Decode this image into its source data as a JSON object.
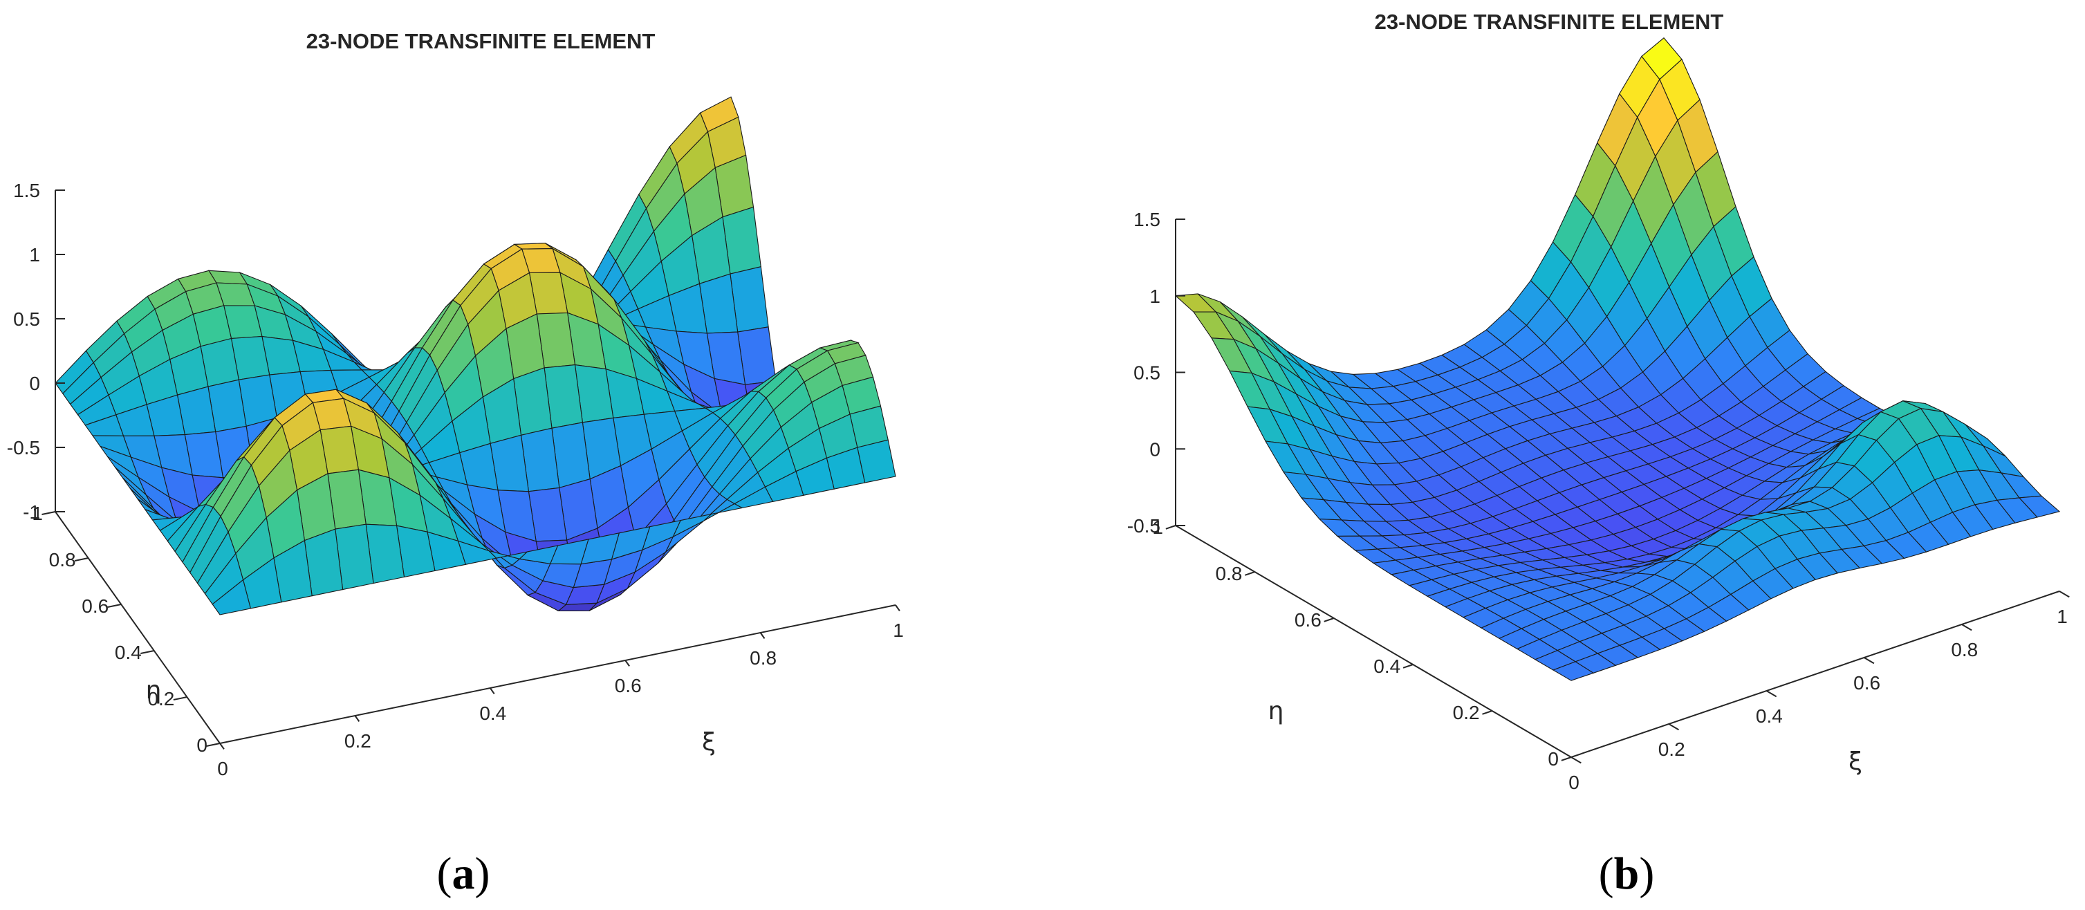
{
  "chart_data": [
    {
      "type": "surface",
      "id": "a",
      "title": "23-NODE TRANSFINITE ELEMENT",
      "xlabel": "ξ",
      "ylabel": "η",
      "zlabel": "",
      "xlim": [
        0,
        1
      ],
      "ylim": [
        0,
        1
      ],
      "zlim": [
        -1,
        1.5
      ],
      "xticks": [
        "0",
        "0.2",
        "0.4",
        "0.6",
        "0.8",
        "1"
      ],
      "yticks": [
        "0",
        "0.2",
        "0.4",
        "0.6",
        "0.8",
        "1"
      ],
      "zticks": [
        "-1",
        "-0.5",
        "0",
        "0.5",
        "1",
        "1.5"
      ],
      "grid_n": 22,
      "surface": "z = cos(2.5π(x+y))·sin(2πx)·sin(2πy)-type oscillating mode shape with 3×3 peaks, amplitude ≈ 1.2, corner value ≈ 1",
      "colormap": "parula",
      "caption": "(a)"
    },
    {
      "type": "surface",
      "id": "b",
      "title": "23-NODE TRANSFINITE ELEMENT",
      "xlabel": "ξ",
      "ylabel": "η",
      "zlabel": "",
      "xlim": [
        0,
        1
      ],
      "ylim": [
        0,
        1
      ],
      "zlim": [
        -0.5,
        1.5
      ],
      "xticks": [
        "0",
        "0.2",
        "0.4",
        "0.6",
        "0.8",
        "1"
      ],
      "yticks": [
        "0",
        "0.2",
        "0.4",
        "0.6",
        "0.8",
        "1"
      ],
      "zticks": [
        "-0.5",
        "0",
        "0.5",
        "1",
        "1.5"
      ],
      "grid_n": 22,
      "surface": "mostly flat shape function with peak 1.0 near corner (0,1), rising corner toward 1.5 at (1,1), small bumps along edge η≈0.2",
      "colormap": "parula",
      "caption": "(b)"
    }
  ]
}
